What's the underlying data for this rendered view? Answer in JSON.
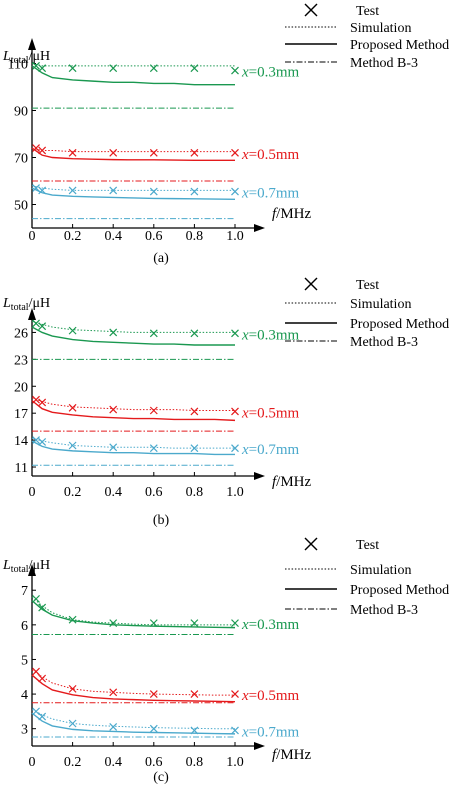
{
  "legend_labels": {
    "test": "Test",
    "simulation": "Simulation",
    "proposed": "Proposed Method",
    "b3": "Method B-3"
  },
  "series_colors": {
    "x=0.3mm": "#1a9850",
    "x=0.5mm": "#e41a1c",
    "x=0.7mm": "#4ba9cc"
  },
  "chart_data": [
    {
      "type": "line",
      "panel_label": "(a)",
      "ylabel": "Ltotal/μH",
      "xlabel": "f/MHz",
      "xlim": [
        0,
        1.0
      ],
      "ylim": [
        40,
        120
      ],
      "xticks": [
        0,
        0.2,
        0.4,
        0.6,
        0.8,
        1.0
      ],
      "yticks": [
        50,
        70,
        90,
        110
      ],
      "x_test": [
        0.02,
        0.05,
        0.2,
        0.4,
        0.6,
        0.8,
        1.0
      ],
      "x_curve": [
        0.0,
        0.05,
        0.1,
        0.2,
        0.3,
        0.4,
        0.5,
        0.6,
        0.7,
        0.8,
        0.9,
        1.0
      ],
      "series": [
        {
          "name": "x=0.3mm",
          "test": [
            109,
            108,
            108,
            108,
            108,
            108,
            107
          ],
          "simulation": [
            110,
            109,
            109,
            109,
            109,
            109,
            109,
            109,
            109,
            109,
            109,
            109
          ],
          "proposed": [
            109,
            106,
            104,
            103,
            102.5,
            102,
            102,
            101.5,
            101.5,
            101,
            101,
            101
          ],
          "b3": 91
        },
        {
          "name": "x=0.5mm",
          "test": [
            74,
            73,
            72,
            72,
            72,
            72,
            72
          ],
          "simulation": [
            74,
            73,
            73,
            72.5,
            72.5,
            72.5,
            72.5,
            72.5,
            72.5,
            72.5,
            72.5,
            72.5
          ],
          "proposed": [
            74,
            71,
            70,
            69.5,
            69.3,
            69.1,
            69,
            69,
            68.9,
            68.8,
            68.8,
            68.8
          ],
          "b3": 60
        },
        {
          "name": "x=0.7mm",
          "test": [
            57,
            56,
            56,
            56,
            55.5,
            55.5,
            55.5
          ],
          "simulation": [
            58,
            57,
            56.5,
            56,
            56,
            56,
            56,
            56,
            56,
            56,
            56,
            56
          ],
          "proposed": [
            57,
            55,
            54,
            53.5,
            53.2,
            53,
            52.8,
            52.6,
            52.5,
            52.4,
            52.3,
            52.2
          ],
          "b3": 44
        }
      ]
    },
    {
      "type": "line",
      "panel_label": "(b)",
      "ylabel": "Ltotal/μH",
      "xlabel": "f/MHz",
      "xlim": [
        0,
        1.0
      ],
      "ylim": [
        10,
        28.5
      ],
      "xticks": [
        0,
        0.2,
        0.4,
        0.6,
        0.8,
        1.0
      ],
      "yticks": [
        11,
        14,
        17,
        20,
        23,
        26
      ],
      "x_test": [
        0.02,
        0.05,
        0.2,
        0.4,
        0.6,
        0.8,
        1.0
      ],
      "x_curve": [
        0.0,
        0.05,
        0.1,
        0.2,
        0.3,
        0.4,
        0.5,
        0.6,
        0.7,
        0.8,
        0.9,
        1.0
      ],
      "series": [
        {
          "name": "x=0.3mm",
          "test": [
            27,
            26.7,
            26.2,
            26,
            25.9,
            25.9,
            25.9
          ],
          "simulation": [
            27.2,
            26.9,
            26.6,
            26.3,
            26.2,
            26.1,
            26,
            26,
            26,
            26,
            26,
            26
          ],
          "proposed": [
            26.6,
            26,
            25.6,
            25.2,
            25,
            24.9,
            24.8,
            24.7,
            24.7,
            24.6,
            24.6,
            24.6
          ],
          "b3": 23
        },
        {
          "name": "x=0.5mm",
          "test": [
            18.5,
            18.2,
            17.6,
            17.4,
            17.3,
            17.2,
            17.2
          ],
          "simulation": [
            18.7,
            18.3,
            18,
            17.7,
            17.6,
            17.5,
            17.4,
            17.4,
            17.4,
            17.3,
            17.3,
            17.3
          ],
          "proposed": [
            18.4,
            17.5,
            17.1,
            16.8,
            16.6,
            16.5,
            16.4,
            16.4,
            16.3,
            16.3,
            16.3,
            16.2
          ],
          "b3": 15
        },
        {
          "name": "x=0.7mm",
          "test": [
            14,
            13.8,
            13.4,
            13.2,
            13.1,
            13.1,
            13.1
          ],
          "simulation": [
            14.2,
            13.9,
            13.7,
            13.4,
            13.3,
            13.2,
            13.2,
            13.2,
            13.1,
            13.1,
            13.1,
            13.1
          ],
          "proposed": [
            13.9,
            13.3,
            13,
            12.8,
            12.7,
            12.6,
            12.6,
            12.5,
            12.5,
            12.5,
            12.4,
            12.4
          ],
          "b3": 11.2
        }
      ]
    },
    {
      "type": "line",
      "panel_label": "(c)",
      "ylabel": "Ltotal/μH",
      "xlabel": "f/MHz",
      "xlim": [
        0,
        1.0
      ],
      "ylim": [
        2.5,
        7.7
      ],
      "xticks": [
        0,
        0.2,
        0.4,
        0.6,
        0.8,
        1.0
      ],
      "yticks": [
        3,
        4,
        5,
        6,
        7
      ],
      "x_test": [
        0.02,
        0.05,
        0.2,
        0.4,
        0.6,
        0.8,
        1.0
      ],
      "x_curve": [
        0.0,
        0.05,
        0.1,
        0.2,
        0.3,
        0.4,
        0.5,
        0.6,
        0.7,
        0.8,
        0.9,
        1.0
      ],
      "series": [
        {
          "name": "x=0.3mm",
          "test": [
            6.75,
            6.5,
            6.15,
            6.05,
            6.05,
            6.05,
            6.05
          ],
          "simulation": [
            6.8,
            6.55,
            6.35,
            6.15,
            6.08,
            6.05,
            6.02,
            6.0,
            6.0,
            6.0,
            6.0,
            6.0
          ],
          "proposed": [
            6.7,
            6.45,
            6.28,
            6.12,
            6.05,
            6.0,
            5.98,
            5.96,
            5.95,
            5.94,
            5.93,
            5.92
          ],
          "b3": 5.72
        },
        {
          "name": "x=0.5mm",
          "test": [
            4.65,
            4.45,
            4.15,
            4.05,
            4.0,
            4.0,
            4.0
          ],
          "simulation": [
            4.7,
            4.5,
            4.32,
            4.15,
            4.08,
            4.05,
            4.02,
            4.0,
            3.99,
            3.98,
            3.97,
            3.97
          ],
          "proposed": [
            4.55,
            4.3,
            4.12,
            3.98,
            3.9,
            3.86,
            3.84,
            3.82,
            3.81,
            3.8,
            3.79,
            3.78
          ],
          "b3": 3.75
        },
        {
          "name": "x=0.7mm",
          "test": [
            3.5,
            3.35,
            3.15,
            3.05,
            3.0,
            2.95,
            2.95
          ],
          "simulation": [
            3.55,
            3.4,
            3.28,
            3.15,
            3.1,
            3.07,
            3.05,
            3.03,
            3.02,
            3.01,
            3.0,
            3.0
          ],
          "proposed": [
            3.45,
            3.22,
            3.08,
            2.98,
            2.94,
            2.92,
            2.9,
            2.89,
            2.88,
            2.87,
            2.86,
            2.85
          ],
          "b3": 2.76
        }
      ]
    }
  ]
}
